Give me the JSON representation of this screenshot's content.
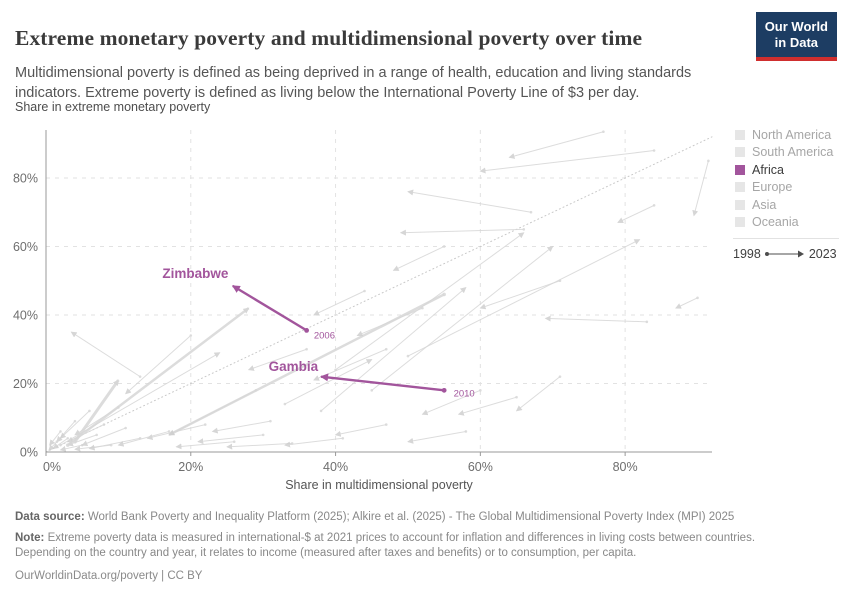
{
  "header": {
    "title": "Extreme monetary poverty and multidimensional poverty over time",
    "subtitle": "Multidimensional poverty is defined as being deprived in a range of health, education and living standards indicators. Extreme poverty is defined as living below the International Poverty Line of $3 per day.",
    "logo": {
      "line1": "Our World",
      "line2": "in Data"
    }
  },
  "chart_data": {
    "type": "scatter",
    "variant": "connected-change-arrows",
    "title": "Extreme monetary poverty and multidimensional poverty over time",
    "xlabel": "Share in multidimensional poverty",
    "ylabel": "Share in extreme monetary poverty",
    "xlim": [
      0,
      92
    ],
    "ylim": [
      0,
      94
    ],
    "x_ticks": [
      0,
      20,
      40,
      60,
      80
    ],
    "y_ticks": [
      0,
      20,
      40,
      60,
      80
    ],
    "tick_suffix": "%",
    "grid": "dashed",
    "legend_position": "right",
    "period": {
      "start": "1998",
      "end": "2023"
    },
    "identity_line": {
      "style": "dotted",
      "from": [
        0,
        0
      ],
      "to": [
        92,
        92
      ]
    },
    "highlighted_series": [
      {
        "country": "Zimbabwe",
        "year_at_start": "2006",
        "from": {
          "x": 36,
          "y": 35.5
        },
        "to": {
          "x": 25.8,
          "y": 48.5
        },
        "country_label": {
          "x": 25.2,
          "y": 50.8,
          "anchor": "end"
        },
        "year_label": {
          "x": 37,
          "y": 33.2,
          "anchor": "start"
        }
      },
      {
        "country": "Gambia",
        "year_at_start": "2010",
        "from": {
          "x": 55,
          "y": 18
        },
        "to": {
          "x": 38,
          "y": 22
        },
        "country_label": {
          "x": 37.6,
          "y": 23.6,
          "anchor": "end"
        },
        "year_label": {
          "x": 56.3,
          "y": 16.2,
          "anchor": "start"
        }
      }
    ],
    "background_lines": [
      [
        3,
        4,
        1,
        1
      ],
      [
        5,
        2,
        2,
        0.6
      ],
      [
        2,
        6,
        0.5,
        2
      ],
      [
        7,
        5,
        3,
        2
      ],
      [
        9,
        2,
        4,
        0.8
      ],
      [
        4,
        9,
        1.5,
        3
      ],
      [
        11,
        7,
        5,
        2
      ],
      [
        13,
        4,
        6,
        1
      ],
      [
        6,
        12,
        2,
        4
      ],
      [
        10,
        13,
        4,
        5
      ],
      [
        8,
        8,
        3,
        3
      ],
      [
        1.5,
        3,
        0.4,
        0.5
      ],
      [
        34,
        2.5,
        25,
        1.5
      ],
      [
        30,
        5,
        21,
        3
      ],
      [
        41,
        4,
        33,
        2
      ],
      [
        22,
        8,
        14,
        4
      ],
      [
        17,
        6,
        10,
        2
      ],
      [
        26,
        3,
        18,
        1.5
      ],
      [
        4,
        3,
        10,
        21,
        3
      ],
      [
        3,
        2,
        28,
        42,
        2.5
      ],
      [
        55,
        46,
        17,
        5,
        2.5
      ],
      [
        2,
        2,
        24,
        29
      ],
      [
        29,
        18,
        17,
        5
      ],
      [
        13,
        22,
        3.5,
        35
      ],
      [
        20,
        34,
        11,
        17
      ],
      [
        47,
        30,
        37,
        21
      ],
      [
        33,
        14,
        45,
        27
      ],
      [
        52,
        42,
        43,
        34
      ],
      [
        44,
        47,
        37,
        40
      ],
      [
        36,
        30,
        28,
        24
      ],
      [
        66,
        65,
        49,
        64
      ],
      [
        67,
        70,
        50,
        76
      ],
      [
        40,
        24,
        66,
        64
      ],
      [
        45,
        18,
        70,
        60
      ],
      [
        50,
        28,
        82,
        62
      ],
      [
        38,
        12,
        58,
        48
      ],
      [
        71,
        22,
        65,
        12
      ],
      [
        83,
        38,
        69,
        39
      ],
      [
        90,
        45,
        87,
        42
      ],
      [
        91.5,
        85,
        89.5,
        69
      ],
      [
        84,
        72,
        79,
        67
      ],
      [
        84,
        88,
        60,
        82
      ],
      [
        77,
        93.5,
        64,
        86
      ],
      [
        60,
        18,
        52,
        11
      ],
      [
        65,
        16,
        57,
        11
      ],
      [
        55,
        60,
        48,
        53
      ],
      [
        71,
        50,
        60,
        42
      ],
      [
        31,
        9,
        23,
        6
      ],
      [
        58,
        6,
        50,
        3
      ],
      [
        47,
        8,
        40,
        5
      ]
    ]
  },
  "legend": {
    "items": [
      {
        "label": "North America",
        "highlighted": false
      },
      {
        "label": "South America",
        "highlighted": false
      },
      {
        "label": "Africa",
        "highlighted": true
      },
      {
        "label": "Europe",
        "highlighted": false
      },
      {
        "label": "Asia",
        "highlighted": false
      },
      {
        "label": "Oceania",
        "highlighted": false
      }
    ],
    "period_start": "1998",
    "period_end": "2023"
  },
  "footer": {
    "datasource_label": "Data source:",
    "datasource_text": " World Bank Poverty and Inequality Platform (2025); Alkire et al. (2025) - The Global Multidimensional Poverty Index (MPI) 2025",
    "note_label": "Note:",
    "note_text": " Extreme poverty data is measured in international-$ at 2021 prices to account for inflation and differences in living costs between countries. Depending on the country and year, it relates to income (measured after taxes and benefits) or to consumption, per capita.",
    "url": "OurWorldinData.org/poverty | CC BY"
  },
  "colors": {
    "highlight": "#a2559c",
    "background_line": "#d7d7d7",
    "muted_swatch": "#e6e6e6",
    "axis": "#999999",
    "gridline": "#e2e2e2",
    "logo_bg": "#1d3d63",
    "logo_accent": "#cf2e2e"
  }
}
